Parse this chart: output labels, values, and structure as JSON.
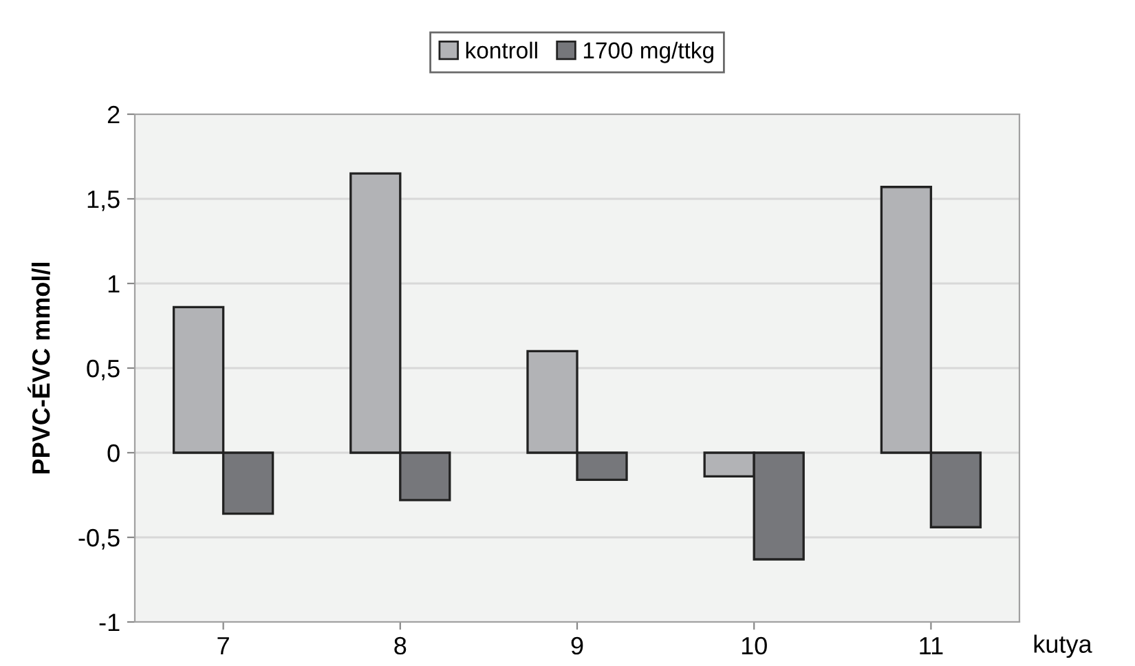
{
  "chart_data": {
    "type": "bar",
    "ylabel": "PPVC-ÉVC mmol/l",
    "xlabel": "kutya",
    "categories": [
      "7",
      "8",
      "9",
      "10",
      "11"
    ],
    "series": [
      {
        "name": "kontroll",
        "color": "#b2b3b6",
        "values": [
          0.86,
          1.65,
          0.6,
          -0.14,
          1.57
        ]
      },
      {
        "name": "1700 mg/ttkg",
        "color": "#76777b",
        "values": [
          -0.36,
          -0.28,
          -0.16,
          -0.63,
          -0.44
        ]
      }
    ],
    "ylim": [
      -1,
      2
    ],
    "yticks": [
      -1,
      {
        "value": -0.5,
        "label": "-0,5"
      },
      0,
      {
        "value": 0.5,
        "label": "0,5"
      },
      1,
      {
        "value": 1.5,
        "label": "1,5"
      },
      2
    ],
    "grid": "y",
    "legend": "top"
  }
}
